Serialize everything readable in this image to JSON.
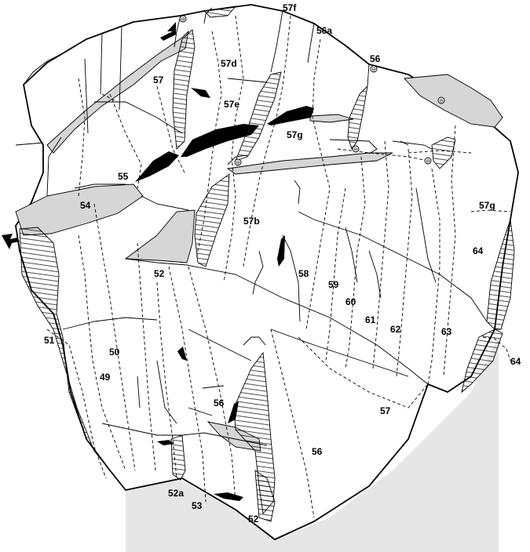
{
  "topo": {
    "labels": {
      "r49": "49",
      "r50": "50",
      "r51": "51",
      "r52_top": "52",
      "r52_bottom": "52",
      "r52a": "52a",
      "r53": "53",
      "r54": "54",
      "r55": "55",
      "r56_top": "56",
      "r56_mid": "56",
      "r56_low": "56",
      "r56a": "56a",
      "r57_left": "57",
      "r57_low": "57",
      "r57b": "57b",
      "r57d": "57d",
      "r57e": "57e",
      "r57f": "57f",
      "r57g_mid": "57g",
      "r57g_right": "57g",
      "r58": "58",
      "r59": "59",
      "r60": "60",
      "r61": "61",
      "r62": "62",
      "r63": "63",
      "r64_mid": "64",
      "r64_edge": "64"
    },
    "bolt_symbol": "⊖",
    "colors": {
      "ground": "#e6e6e6",
      "ledge": "#d6d6d6",
      "ink": "#000000"
    }
  }
}
